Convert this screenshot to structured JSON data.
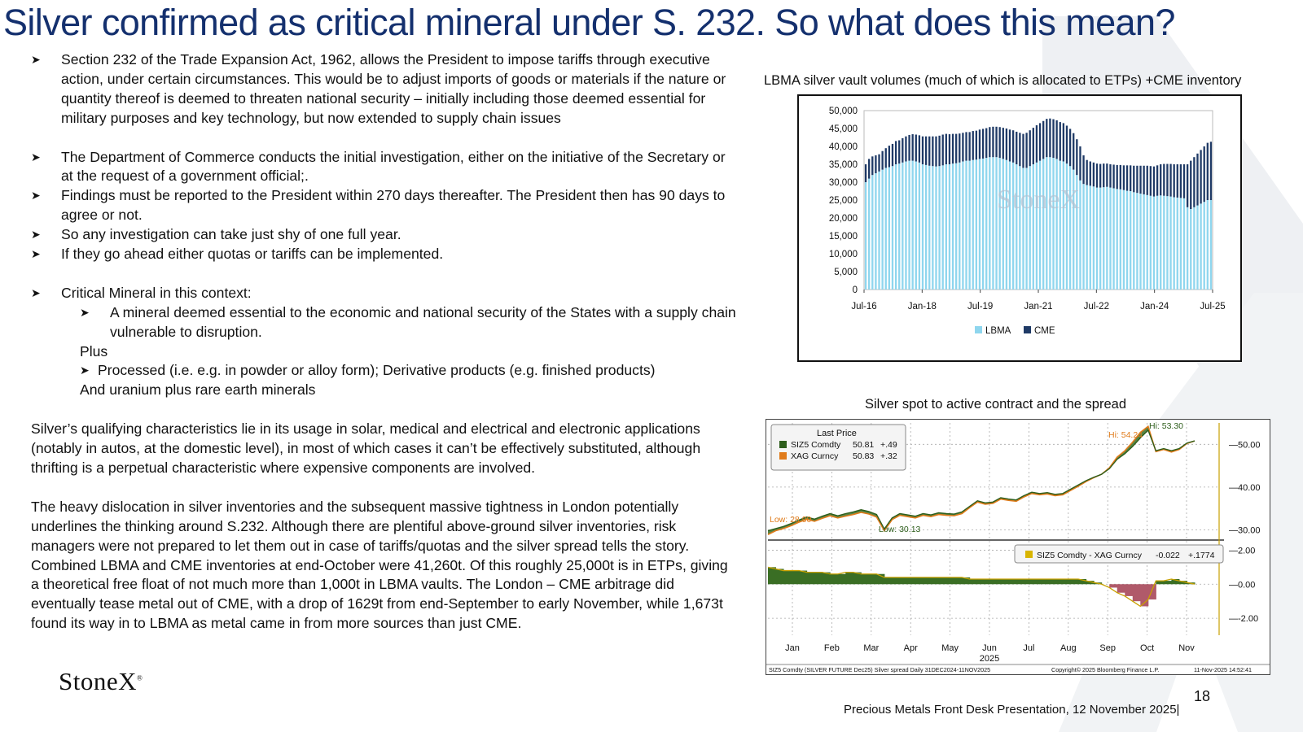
{
  "title": "Silver confirmed as critical mineral under S. 232.  So what does this mean?",
  "bullets": [
    "Section 232 of the Trade Expansion Act, 1962, allows the President to impose tariffs through executive action, under certain circumstances.  This would be to adjust imports of goods or materials if the nature or quantity thereof is deemed to threaten national security – initially including those deemed essential for military purposes and key technology, but now extended to supply chain issues",
    "The Department of Commerce conducts the initial investigation, either on the initiative of the Secretary or at the request of a government official;.",
    "Findings must be reported to the President within 270 days thereafter.  The President then has 90 days to agree or not.",
    "So any investigation can take just shy of one full year.",
    "If they go ahead either quotas or tariffs can be implemented.",
    "Critical Mineral in this context:"
  ],
  "sub_bullet": "A mineral deemed essential to the economic and national security of the States with a supply chain vulnerable to disruption.",
  "plus": "Plus",
  "sub_bullet2": "Processed (i.e. e.g. in powder or alloy form); Derivative products (e.g.  finished products)",
  "uranium": "And uranium plus rare earth minerals",
  "para1": "Silver’s qualifying characteristics lie in its usage in solar, medical and electrical and electronic applications (notably in autos, at the domestic level), in most of which cases it can’t be effectively substituted, although thrifting is a perpetual characteristic where expensive components are involved.",
  "para2": "The heavy dislocation in silver inventories and the subsequent massive tightness in London potentially underlines the thinking around S.232.  Although there are plentiful above-ground silver inventories, risk managers were not prepared to let them out in case of tariffs/quotas and the silver spread tells the story.  Combined LBMA and CME inventories at end-October were 41,260t.  Of this roughly 25,000t is in ETPs, giving a theoretical free float of not much more than 1,000t in LBMA vaults.  The London – CME arbitrage did eventually tease metal out of CME, with a drop of 1629t from end-September to early November, while 1,673t found its way in to LBMA as metal came in from more sources than just CME.",
  "chart1_title": "LBMA silver vault volumes (much of which is allocated to ETPs) +CME inventory",
  "chart2_title": "Silver spot to active contract and the spread",
  "logo": "StoneX",
  "logo_mark": "®",
  "page_number": "18",
  "footer": "Precious Metals Front Desk Presentation, 12 November 2025|",
  "colors": {
    "title": "#14306e",
    "lbma": "#8fd6ee",
    "cme": "#1f3a66",
    "siz5": "#2e5e1c",
    "xag": "#e07b1a",
    "spread_pos": "#3a6e24",
    "spread_neg": "#b05a6a"
  },
  "chart_data": [
    {
      "type": "bar",
      "title": "LBMA silver vault volumes (much of which is allocated to ETPs) +CME inventory",
      "stacked": true,
      "watermark": "StoneX",
      "x_ticks": [
        "Jul-16",
        "Jan-18",
        "Jul-19",
        "Jan-21",
        "Jul-22",
        "Jan-24",
        "Jul-25"
      ],
      "y_ticks": [
        "0",
        "5,000",
        "10,000",
        "15,000",
        "20,000",
        "25,000",
        "30,000",
        "35,000",
        "40,000",
        "45,000",
        "50,000"
      ],
      "ylim": [
        0,
        50000
      ],
      "legend_position": "bottom",
      "series": [
        {
          "name": "LBMA",
          "values": [
            30000,
            31000,
            32000,
            32500,
            33000,
            33500,
            34000,
            34200,
            34500,
            35000,
            35200,
            35500,
            35800,
            36000,
            36000,
            35800,
            35500,
            35000,
            34800,
            34600,
            34500,
            34400,
            34500,
            34700,
            35000,
            35000,
            35200,
            35300,
            35500,
            35800,
            36000,
            36000,
            36200,
            36300,
            36500,
            36600,
            36800,
            37000,
            37000,
            37000,
            36800,
            36500,
            36200,
            35800,
            35500,
            35000,
            34500,
            34000,
            34000,
            34500,
            35000,
            35500,
            36000,
            36500,
            37000,
            37000,
            36800,
            36500,
            36000,
            35800,
            35200,
            34500,
            33500,
            32000,
            30500,
            29500,
            29200,
            29000,
            28800,
            28500,
            28500,
            28600,
            28700,
            28500,
            28300,
            28100,
            28000,
            27800,
            27600,
            27500,
            27200,
            27000,
            26800,
            26600,
            26400,
            26200,
            26000,
            26200,
            26300,
            26200,
            26100,
            26000,
            25800,
            25700,
            25600,
            25500,
            23000,
            22500,
            23000,
            23500,
            24000,
            24500,
            25000,
            25000
          ]
        },
        {
          "name": "CME",
          "values": [
            5000,
            5500,
            5200,
            5000,
            4800,
            5200,
            5500,
            6000,
            6200,
            6500,
            6500,
            6800,
            7000,
            7200,
            7400,
            7500,
            7600,
            7800,
            8000,
            8200,
            8300,
            8400,
            8500,
            8600,
            8500,
            8400,
            8300,
            8200,
            8100,
            8000,
            8000,
            8000,
            8100,
            8100,
            8200,
            8300,
            8300,
            8400,
            8500,
            8500,
            8600,
            8700,
            8800,
            8900,
            9000,
            9100,
            9300,
            9500,
            9800,
            10000,
            10200,
            10400,
            10500,
            10600,
            10700,
            10800,
            10800,
            10800,
            10800,
            10700,
            10600,
            10400,
            10200,
            10000,
            9500,
            8000,
            7000,
            6800,
            6700,
            6700,
            6600,
            6600,
            6500,
            6500,
            6600,
            6700,
            6800,
            6900,
            7100,
            7200,
            7400,
            7600,
            7800,
            8000,
            8200,
            8300,
            8400,
            8500,
            8700,
            8900,
            9000,
            9100,
            9200,
            9300,
            9400,
            9500,
            12000,
            13500,
            14000,
            14500,
            15000,
            15500,
            16000,
            16300
          ]
        }
      ]
    },
    {
      "type": "line",
      "title": "Silver spot to active contract and the spread",
      "legend_title": "Last Price",
      "x_ticks": [
        "Jan",
        "Feb",
        "Mar",
        "Apr",
        "May",
        "Jun",
        "Jul",
        "Aug",
        "Sep",
        "Oct",
        "Nov"
      ],
      "x_tick_sub": "2025",
      "y_ticks_top": [
        "30.00",
        "40.00",
        "50.00"
      ],
      "y_ticks_bottom": [
        "-2.00",
        "0.00",
        "2.00"
      ],
      "ylim_top": [
        28,
        55
      ],
      "ylim_bottom": [
        -3,
        2.5
      ],
      "annotations": {
        "hi_siz5": "Hi: 53.30",
        "hi_xag": "Hi: 54.24",
        "low_siz5": "Low: 30.13",
        "low_xag": "Low: 28.90"
      },
      "series": [
        {
          "name": "SIZ5 Comdty",
          "last": "50.81",
          "change": "+.49",
          "values": [
            29.8,
            30.3,
            30.8,
            31.5,
            32.3,
            33.0,
            32.5,
            33.2,
            33.8,
            33.3,
            33.8,
            34.2,
            34.7,
            34.3,
            33.6,
            30.2,
            32.8,
            33.8,
            33.5,
            33.2,
            33.8,
            33.5,
            34.0,
            33.8,
            33.7,
            34.2,
            35.5,
            36.8,
            36.3,
            36.5,
            37.5,
            37.2,
            37.0,
            38.0,
            38.8,
            38.5,
            38.7,
            38.3,
            38.5,
            39.5,
            40.5,
            41.5,
            42.3,
            43.0,
            44.3,
            46.5,
            47.8,
            49.5,
            51.5,
            53.3,
            48.5,
            49.0,
            48.5,
            49.0,
            50.3,
            50.8
          ]
        },
        {
          "name": "XAG Curncy",
          "last": "50.83",
          "change": "+.32",
          "values": [
            28.9,
            29.8,
            30.3,
            31.0,
            31.8,
            32.5,
            32.0,
            32.7,
            33.3,
            32.8,
            33.2,
            33.6,
            34.1,
            33.7,
            33.0,
            29.8,
            32.4,
            33.4,
            33.1,
            32.8,
            33.4,
            33.1,
            33.6,
            33.4,
            33.3,
            33.8,
            35.2,
            36.5,
            36.0,
            36.2,
            37.2,
            36.9,
            36.7,
            37.7,
            38.5,
            38.2,
            38.4,
            38.0,
            38.2,
            39.2,
            40.2,
            41.3,
            42.2,
            43.0,
            44.5,
            47.0,
            48.5,
            50.5,
            52.8,
            54.2,
            48.3,
            48.8,
            48.2,
            48.8,
            50.2,
            50.8
          ]
        },
        {
          "name": "SIZ5 Comdty - XAG Curncy",
          "last": "-0.022",
          "change": "+.1774",
          "values": [
            1.0,
            0.9,
            0.8,
            0.8,
            0.8,
            0.7,
            0.7,
            0.7,
            0.6,
            0.6,
            0.7,
            0.7,
            0.6,
            0.6,
            0.6,
            0.4,
            0.4,
            0.4,
            0.4,
            0.4,
            0.4,
            0.4,
            0.4,
            0.4,
            0.4,
            0.4,
            0.3,
            0.3,
            0.3,
            0.3,
            0.3,
            0.3,
            0.3,
            0.3,
            0.3,
            0.3,
            0.3,
            0.3,
            0.3,
            0.3,
            0.3,
            0.2,
            0.1,
            0.0,
            -0.2,
            -0.5,
            -0.7,
            -1.0,
            -1.3,
            -0.9,
            0.2,
            0.2,
            0.3,
            0.2,
            0.1,
            0.0
          ]
        }
      ],
      "footer_left": "SIZ5 Comdty (SILVER FUTURE   Dec25) Silver spread Daily 31DEC2024-11NOV2025",
      "footer_mid": "Copyright© 2025 Bloomberg Finance L.P.",
      "footer_right": "11-Nov-2025 14:52:41"
    }
  ]
}
